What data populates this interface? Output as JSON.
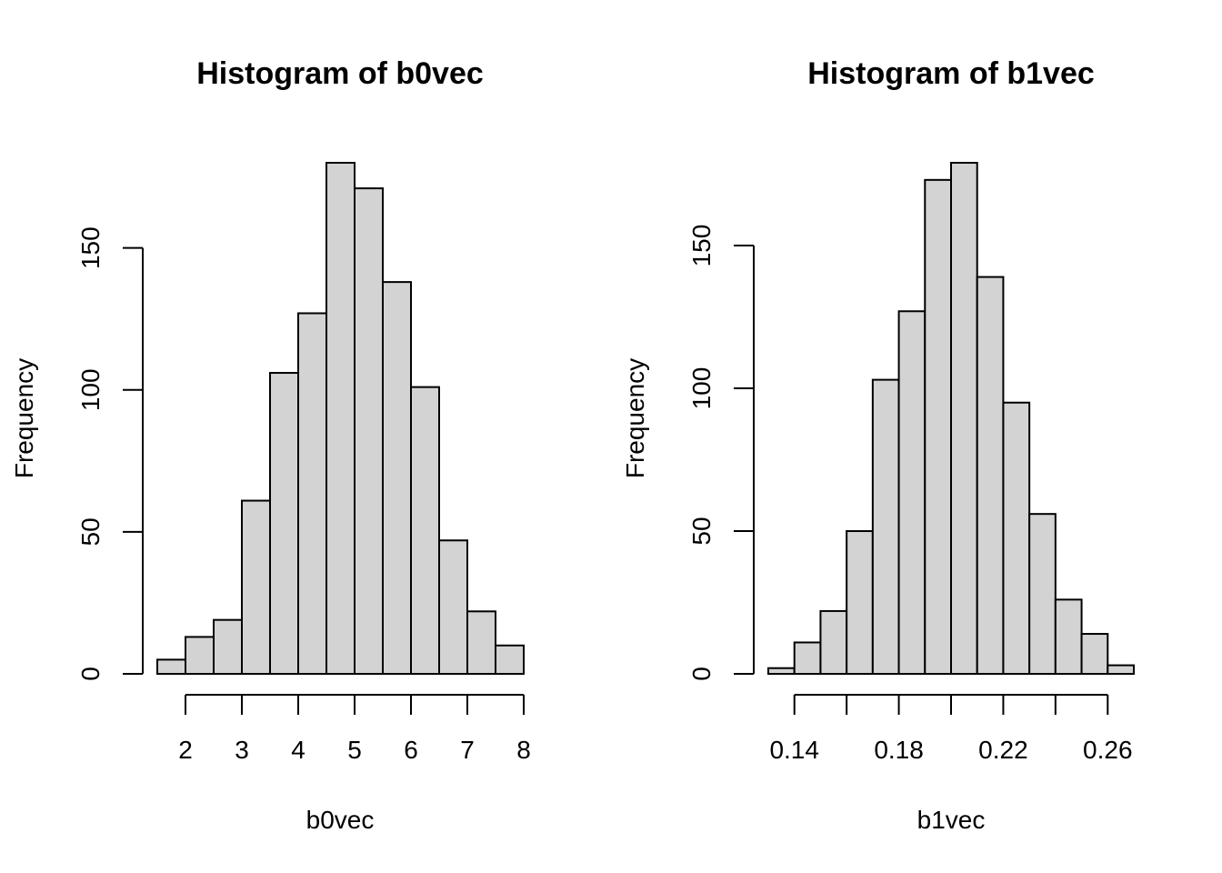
{
  "chart_data": [
    {
      "type": "bar",
      "title": "Histogram of b0vec",
      "xlabel": "b0vec",
      "ylabel": "Frequency",
      "bin_edges": [
        1.5,
        2.0,
        2.5,
        3.0,
        3.5,
        4.0,
        4.5,
        5.0,
        5.5,
        6.0,
        6.5,
        7.0,
        7.5,
        8.0
      ],
      "values": [
        5,
        13,
        19,
        61,
        106,
        127,
        180,
        171,
        138,
        101,
        47,
        22,
        10
      ],
      "xticks": [
        2,
        3,
        4,
        5,
        6,
        7,
        8
      ],
      "xtick_labels": [
        "2",
        "3",
        "4",
        "5",
        "6",
        "7",
        "8"
      ],
      "xlim": [
        1.5,
        8.0
      ],
      "yticks": [
        0,
        50,
        100,
        150
      ],
      "ytick_labels": [
        "0",
        "50",
        "100",
        "150"
      ],
      "ylim": [
        0,
        180
      ],
      "grid": false
    },
    {
      "type": "bar",
      "title": "Histogram of b1vec",
      "xlabel": "b1vec",
      "ylabel": "Frequency",
      "bin_edges": [
        0.13,
        0.14,
        0.15,
        0.16,
        0.17,
        0.18,
        0.19,
        0.2,
        0.21,
        0.22,
        0.23,
        0.24,
        0.25,
        0.26,
        0.27
      ],
      "values": [
        2,
        11,
        22,
        50,
        103,
        127,
        173,
        179,
        139,
        95,
        56,
        26,
        14,
        3
      ],
      "xticks": [
        0.14,
        0.16,
        0.18,
        0.2,
        0.22,
        0.24,
        0.26
      ],
      "xtick_labels": [
        "0.14",
        "",
        "0.18",
        "",
        "0.22",
        "",
        "0.26"
      ],
      "xlim": [
        0.13,
        0.27
      ],
      "yticks": [
        0,
        50,
        100,
        150
      ],
      "ytick_labels": [
        "0",
        "50",
        "100",
        "150"
      ],
      "ylim": [
        0,
        179
      ],
      "grid": false
    }
  ]
}
